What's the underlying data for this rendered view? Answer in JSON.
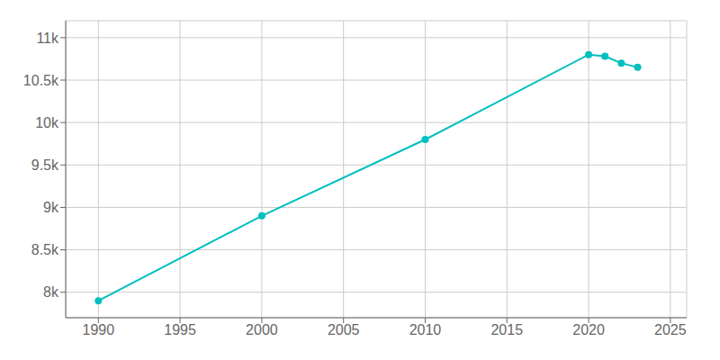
{
  "chart_data": {
    "type": "line",
    "x": [
      1990,
      2000,
      2010,
      2020,
      2021,
      2022,
      2023
    ],
    "values": [
      7900,
      8900,
      9800,
      10800,
      10780,
      10700,
      10650
    ],
    "color": "#00BFBF",
    "marker": "circle",
    "grid": true,
    "xlim": [
      1988,
      2026
    ],
    "ylim": [
      7700,
      11200
    ],
    "xticks": [
      1990,
      1995,
      2000,
      2005,
      2010,
      2015,
      2020,
      2025
    ],
    "yticks": [
      {
        "value": 8000,
        "label": "8k"
      },
      {
        "value": 8500,
        "label": "8.5k"
      },
      {
        "value": 9000,
        "label": "9k"
      },
      {
        "value": 9500,
        "label": "9.5k"
      },
      {
        "value": 10000,
        "label": "10k"
      },
      {
        "value": 10500,
        "label": "10.5k"
      },
      {
        "value": 11000,
        "label": "11k"
      }
    ]
  }
}
